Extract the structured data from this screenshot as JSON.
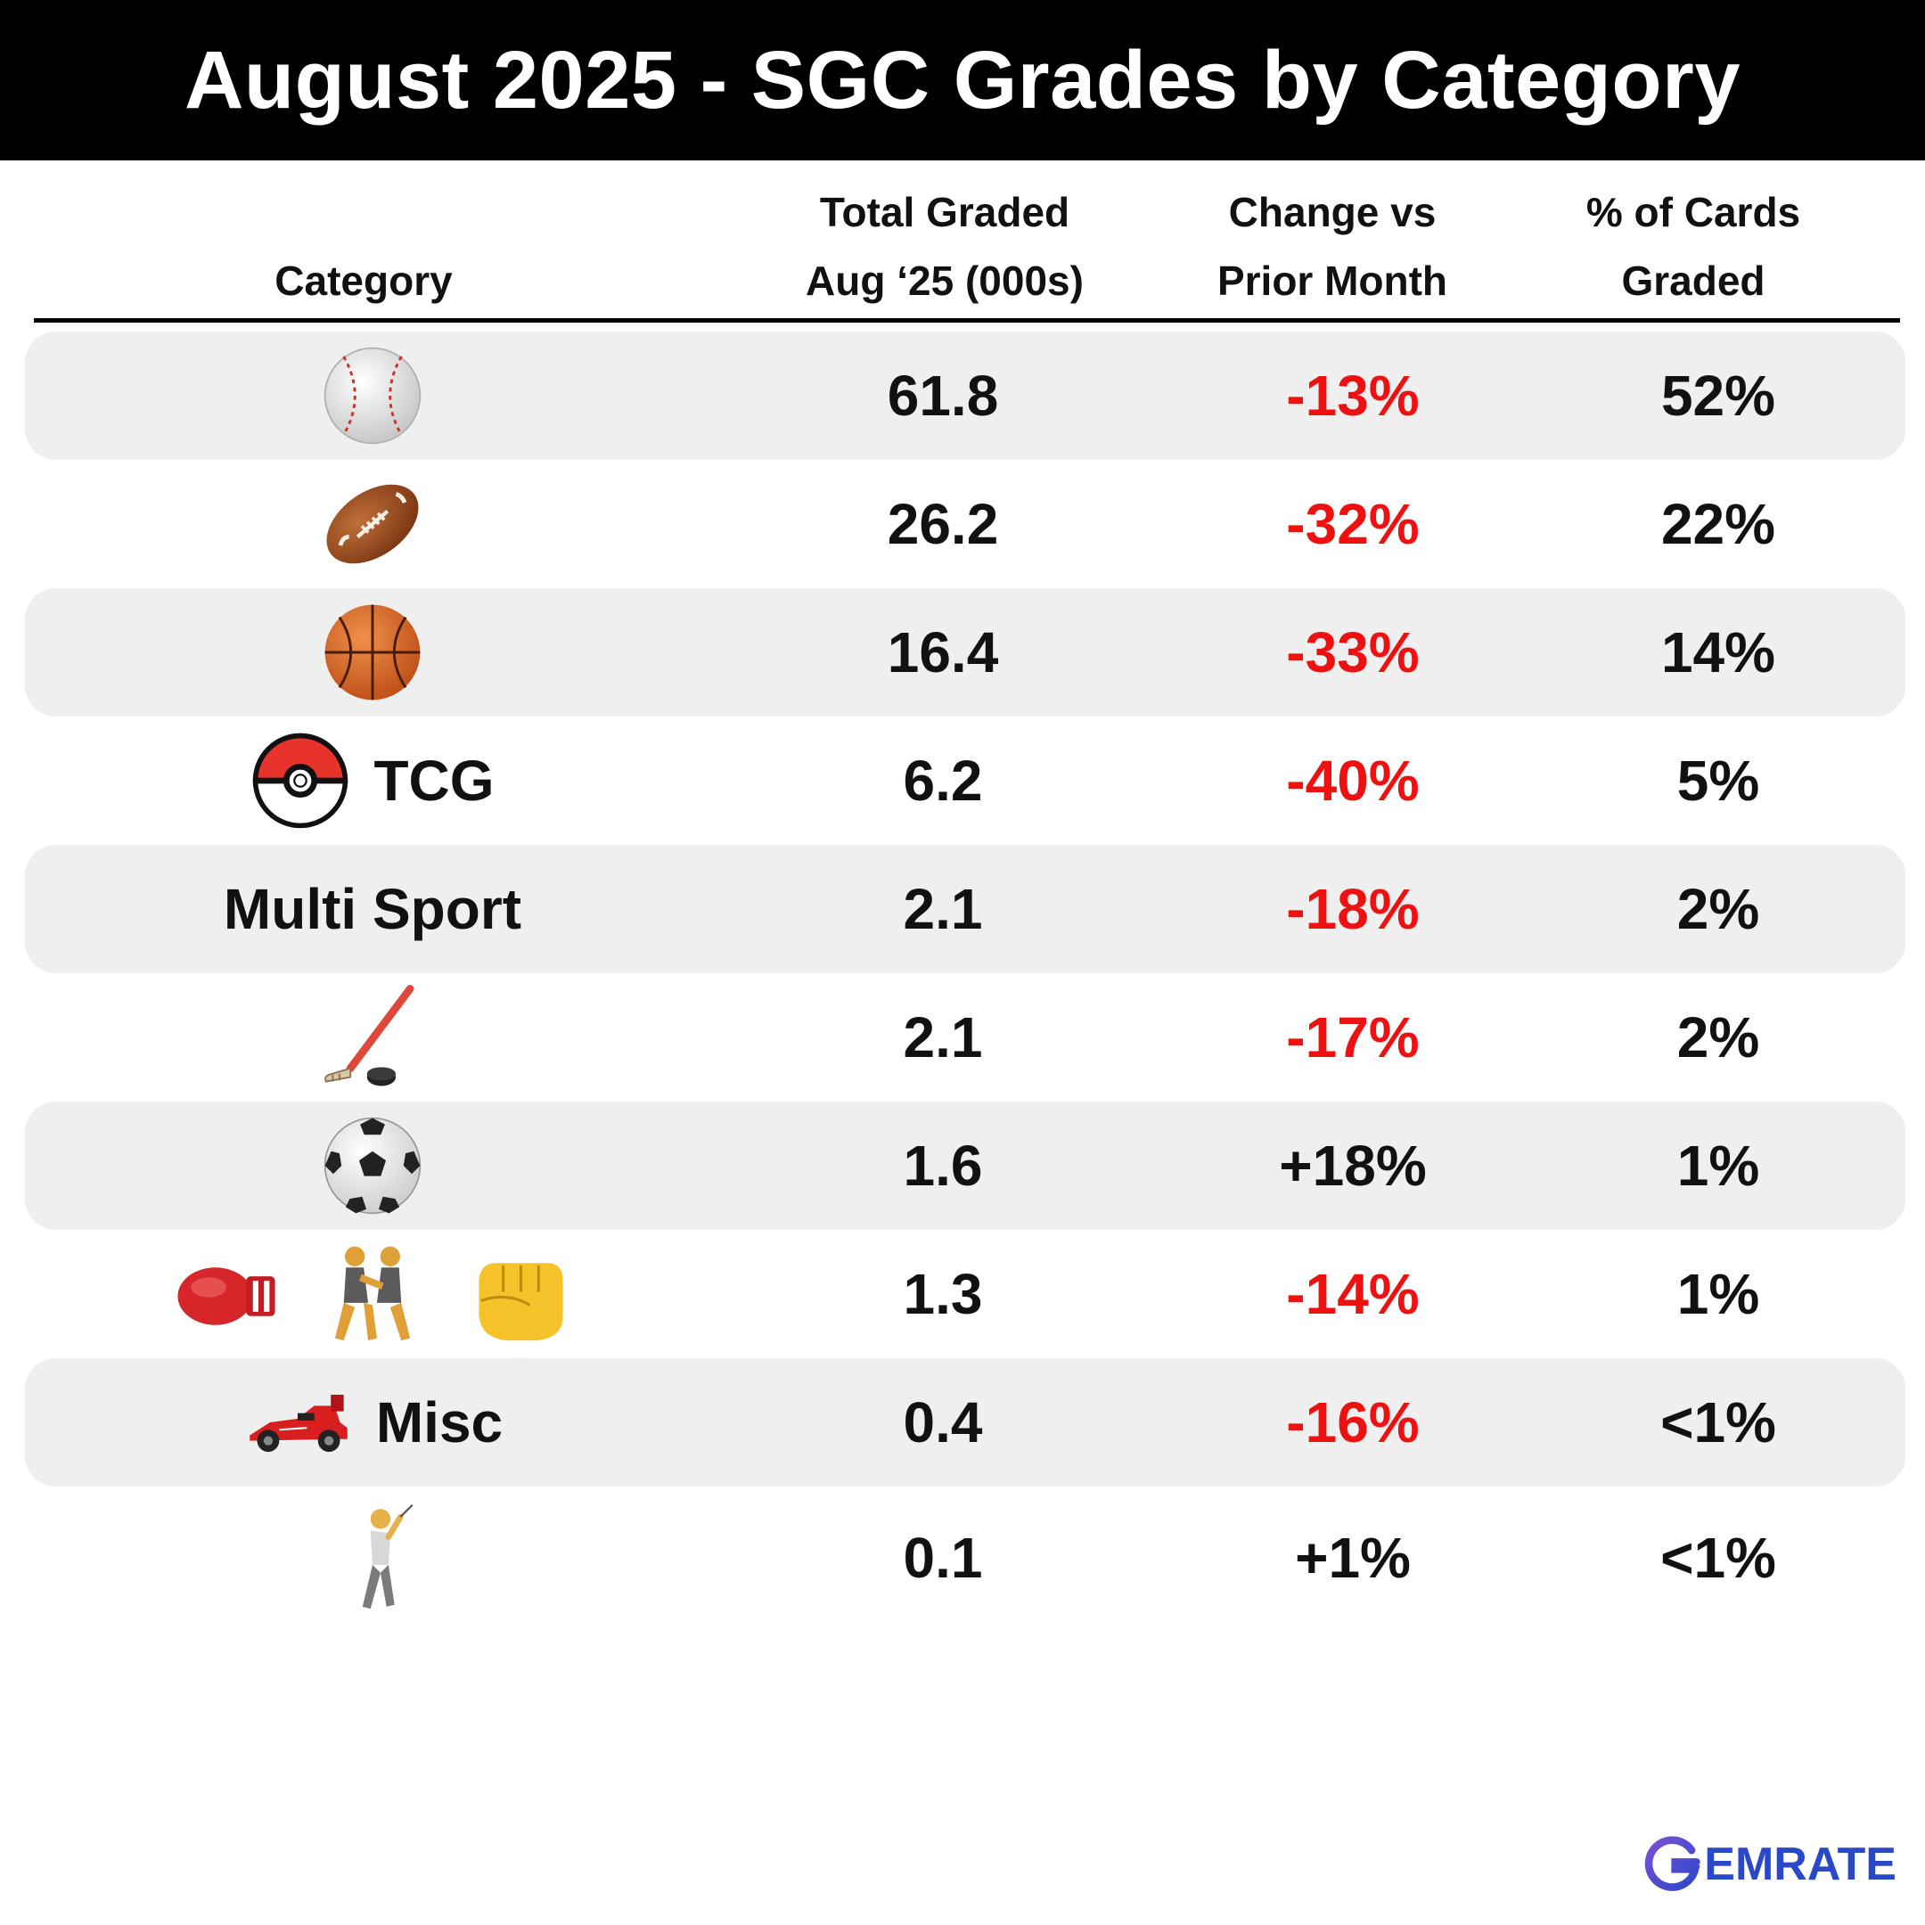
{
  "title": "August 2025 - SGC Grades by Category",
  "headers": {
    "category": "Category",
    "total_l1": "Total Graded",
    "total_l2": "Aug ‘25 (000s)",
    "change_l1": "Change vs",
    "change_l2": "Prior Month",
    "pct_l1": "% of Cards",
    "pct_l2": "Graded"
  },
  "rows": [
    {
      "total": "61.8",
      "change": "-13%",
      "pct": "52%"
    },
    {
      "total": "26.2",
      "change": "-32%",
      "pct": "22%"
    },
    {
      "total": "16.4",
      "change": "-33%",
      "pct": "14%"
    },
    {
      "label": "TCG",
      "total": "6.2",
      "change": "-40%",
      "pct": "5%"
    },
    {
      "label": "Multi Sport",
      "total": "2.1",
      "change": "-18%",
      "pct": "2%"
    },
    {
      "total": "2.1",
      "change": "-17%",
      "pct": "2%"
    },
    {
      "total": "1.6",
      "change": "+18%",
      "pct": "1%"
    },
    {
      "total": "1.3",
      "change": "-14%",
      "pct": "1%"
    },
    {
      "label": "Misc",
      "total": "0.4",
      "change": "-16%",
      "pct": "<1%"
    },
    {
      "total": "0.1",
      "change": "+1%",
      "pct": "<1%"
    }
  ],
  "icons": [
    "baseball-icon",
    "football-icon",
    "basketball-icon",
    "pokeball-icon",
    "hockey-icon",
    "soccer-ball-icon",
    "boxing-glove-icon",
    "wrestling-icon",
    "fist-icon",
    "race-car-icon",
    "golfer-icon"
  ],
  "chart_data": {
    "type": "table",
    "title": "August 2025 - SGC Grades by Category",
    "columns": [
      "Category",
      "Total Graded Aug ‘25 (000s)",
      "Change vs Prior Month",
      "% of Cards Graded"
    ],
    "rows": [
      [
        "Baseball",
        61.8,
        -13,
        52
      ],
      [
        "Football",
        26.2,
        -32,
        22
      ],
      [
        "Basketball",
        16.4,
        -33,
        14
      ],
      [
        "TCG",
        6.2,
        -40,
        5
      ],
      [
        "Multi Sport",
        2.1,
        -18,
        2
      ],
      [
        "Hockey",
        2.1,
        -17,
        2
      ],
      [
        "Soccer",
        1.6,
        18,
        1
      ],
      [
        "Boxing / Wrestling / MMA",
        1.3,
        -14,
        1
      ],
      [
        "Misc",
        0.4,
        -16,
        "<1"
      ],
      [
        "Golf",
        0.1,
        1,
        "<1"
      ]
    ]
  },
  "colors": {
    "negative": "#ee1111",
    "positive": "#111111",
    "row_shade": "#efefef",
    "title_bg": "#000000"
  },
  "logo": {
    "text": "EMRATE"
  }
}
